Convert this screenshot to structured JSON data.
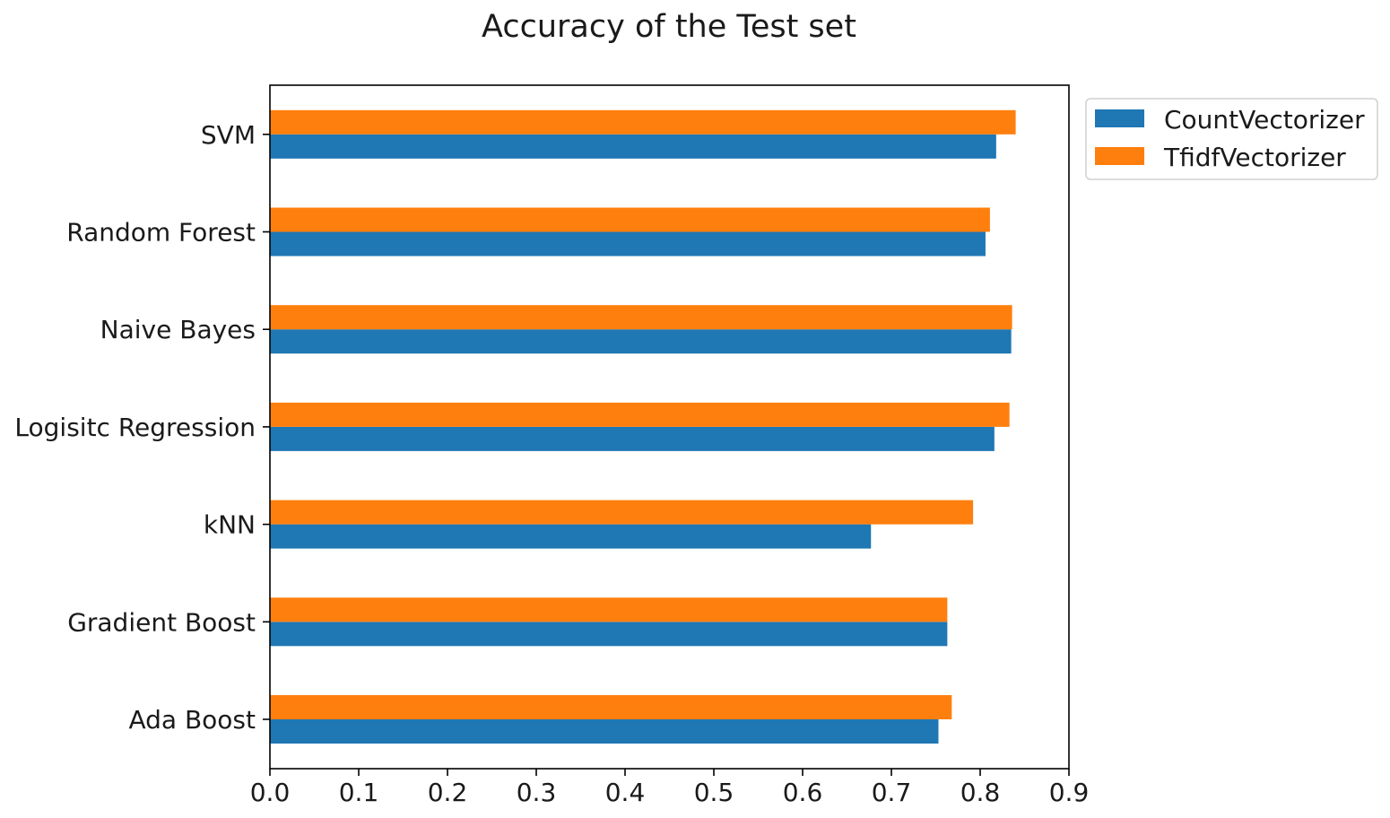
{
  "chart_data": {
    "type": "bar",
    "orientation": "horizontal",
    "title": "Accuracy of the Test set",
    "xlabel": "",
    "ylabel": "",
    "categories": [
      "Ada Boost",
      "Gradient Boost",
      "kNN",
      "Logisitc Regression",
      "Naive Bayes",
      "Random Forest",
      "SVM"
    ],
    "series": [
      {
        "name": "CountVectorizer",
        "color": "#1f77b4",
        "values": [
          0.753,
          0.763,
          0.677,
          0.816,
          0.835,
          0.806,
          0.818
        ]
      },
      {
        "name": "TfidfVectorizer",
        "color": "#ff7f0e",
        "values": [
          0.768,
          0.763,
          0.792,
          0.833,
          0.836,
          0.811,
          0.84
        ]
      }
    ],
    "xlim": [
      0.0,
      0.9
    ],
    "xticks": [
      "0.0",
      "0.1",
      "0.2",
      "0.3",
      "0.4",
      "0.5",
      "0.6",
      "0.7",
      "0.8",
      "0.9"
    ],
    "grid": false,
    "legend_placement": "outside top-right"
  }
}
